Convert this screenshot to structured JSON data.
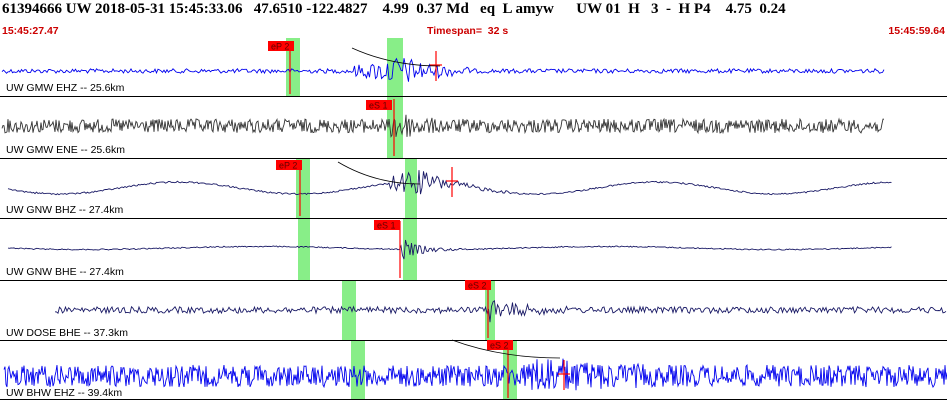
{
  "header": {
    "event_line": "61394666 UW 2018-05-31 15:45:33.06   47.6510 -122.4827    4.99  0.37 Md   eq  L amyw      UW 01  H   3  -  H P4    4.75  0.24"
  },
  "timebar": {
    "start_time": "15:45:27.47",
    "timespan": "Timespan=  32 s",
    "end_time": "15:45:59.64"
  },
  "colors": {
    "trace_blue": "#0000ee",
    "trace_dark": "#333333",
    "trace_navy": "#1a1a66",
    "pick_red": "#ff0000",
    "window_green": "#88ee88",
    "label_red": "#cc0000"
  },
  "channels": [
    {
      "label": "UW GMW EHZ -- 25.6km",
      "color": "blue",
      "pick": "eP 2",
      "style": "noisy"
    },
    {
      "label": "UW GMW ENE -- 25.6km",
      "color": "dark",
      "pick": "eS 1",
      "style": "dense"
    },
    {
      "label": "UW GNW BHZ -- 27.4km",
      "color": "navy",
      "pick": "eP 2",
      "style": "wave"
    },
    {
      "label": "UW GNW BHE -- 27.4km",
      "color": "navy",
      "pick": "eS 1",
      "style": "flat"
    },
    {
      "label": "UW DOSE BHE -- 37.3km",
      "color": "navy",
      "pick": "eS 2",
      "style": "moderate"
    },
    {
      "label": "UW BHW EHZ -- 39.4km",
      "color": "blue",
      "pick": "eS 2",
      "style": "loud"
    }
  ]
}
